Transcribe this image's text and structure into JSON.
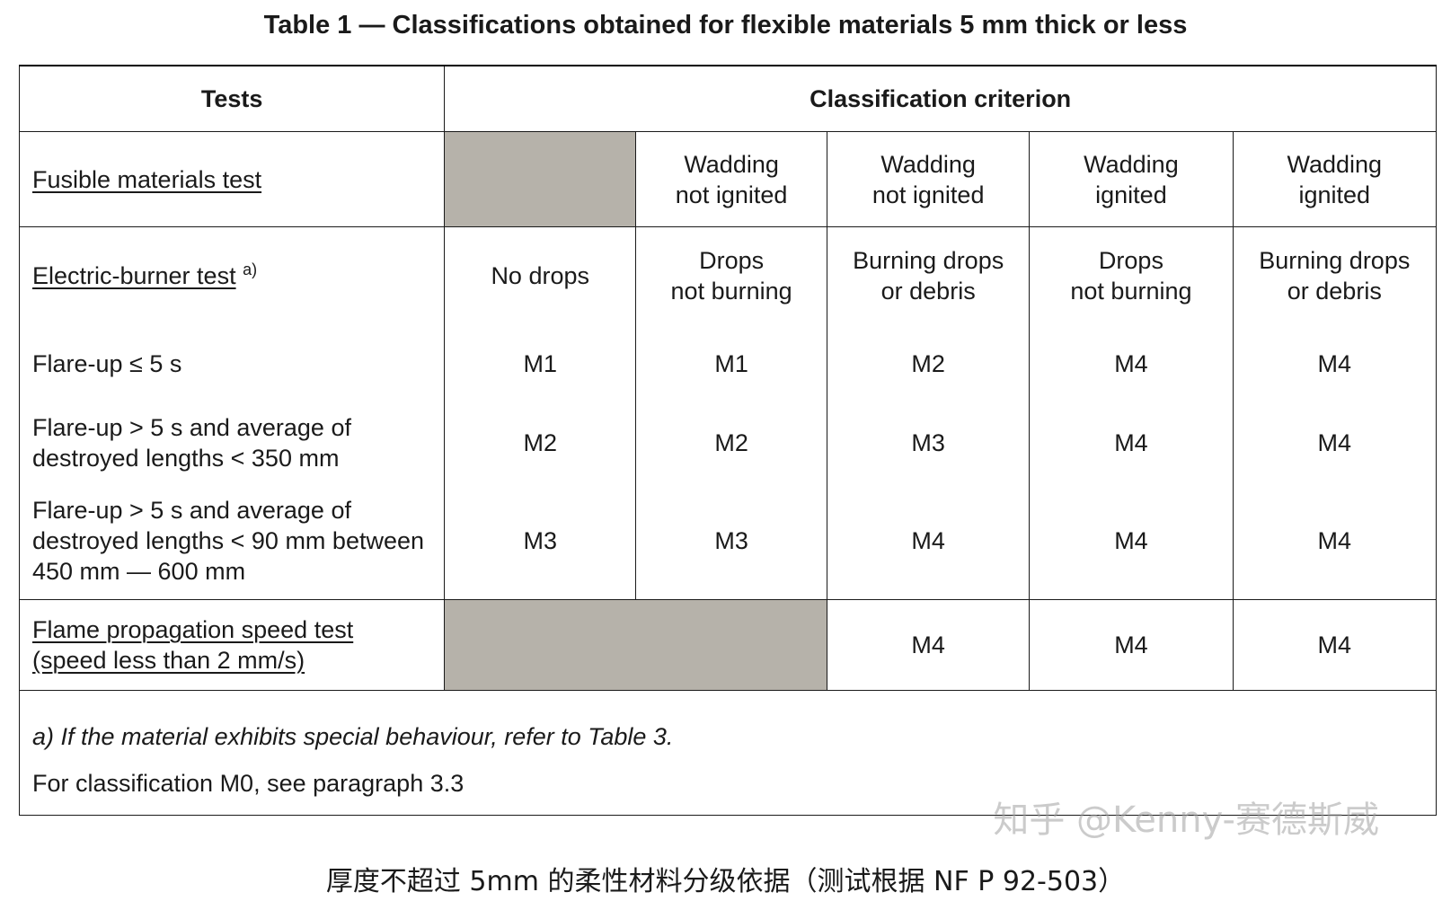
{
  "title": "Table 1 — Classifications obtained for flexible materials 5 mm thick or less",
  "header": {
    "tests": "Tests",
    "criterion": "Classification criterion"
  },
  "fusible": {
    "label": "Fusible materials test",
    "cols": [
      [
        "Wadding",
        "not ignited"
      ],
      [
        "Wadding",
        "not ignited"
      ],
      [
        "Wadding",
        "ignited"
      ],
      [
        "Wadding",
        "ignited"
      ]
    ]
  },
  "burner": {
    "label": "Electric-burner test",
    "footnote_mark": "a)",
    "cols": [
      [
        "No drops"
      ],
      [
        "Drops",
        "not burning"
      ],
      [
        "Burning drops",
        "or debris"
      ],
      [
        "Drops",
        "not burning"
      ],
      [
        "Burning drops",
        "or debris"
      ]
    ]
  },
  "rows": [
    {
      "label": [
        "Flare-up ≤ 5 s"
      ],
      "values": [
        "M1",
        "M1",
        "M2",
        "M4",
        "M4"
      ]
    },
    {
      "label": [
        "Flare-up > 5 s and average of",
        "destroyed lengths < 350 mm"
      ],
      "values": [
        "M2",
        "M2",
        "M3",
        "M4",
        "M4"
      ]
    },
    {
      "label": [
        "Flare-up > 5 s and average of",
        "destroyed lengths < 90 mm between",
        "450 mm — 600 mm"
      ],
      "values": [
        "M3",
        "M3",
        "M4",
        "M4",
        "M4"
      ]
    }
  ],
  "flame": {
    "label": [
      "Flame propagation speed test",
      "(speed less than 2 mm/s)"
    ],
    "values": [
      "M4",
      "M4",
      "M4"
    ]
  },
  "notes": {
    "a": "a) If the material exhibits special behaviour, refer to Table 3.",
    "m0": "For classification M0, see paragraph 3.3"
  },
  "watermark": "知乎 @Kenny-赛德斯威",
  "caption": "厚度不超过 5mm 的柔性材料分级依据（测试根据 NF P 92-503）",
  "colors": {
    "shade": "#b6b2aa",
    "border": "#1a1a1a"
  }
}
